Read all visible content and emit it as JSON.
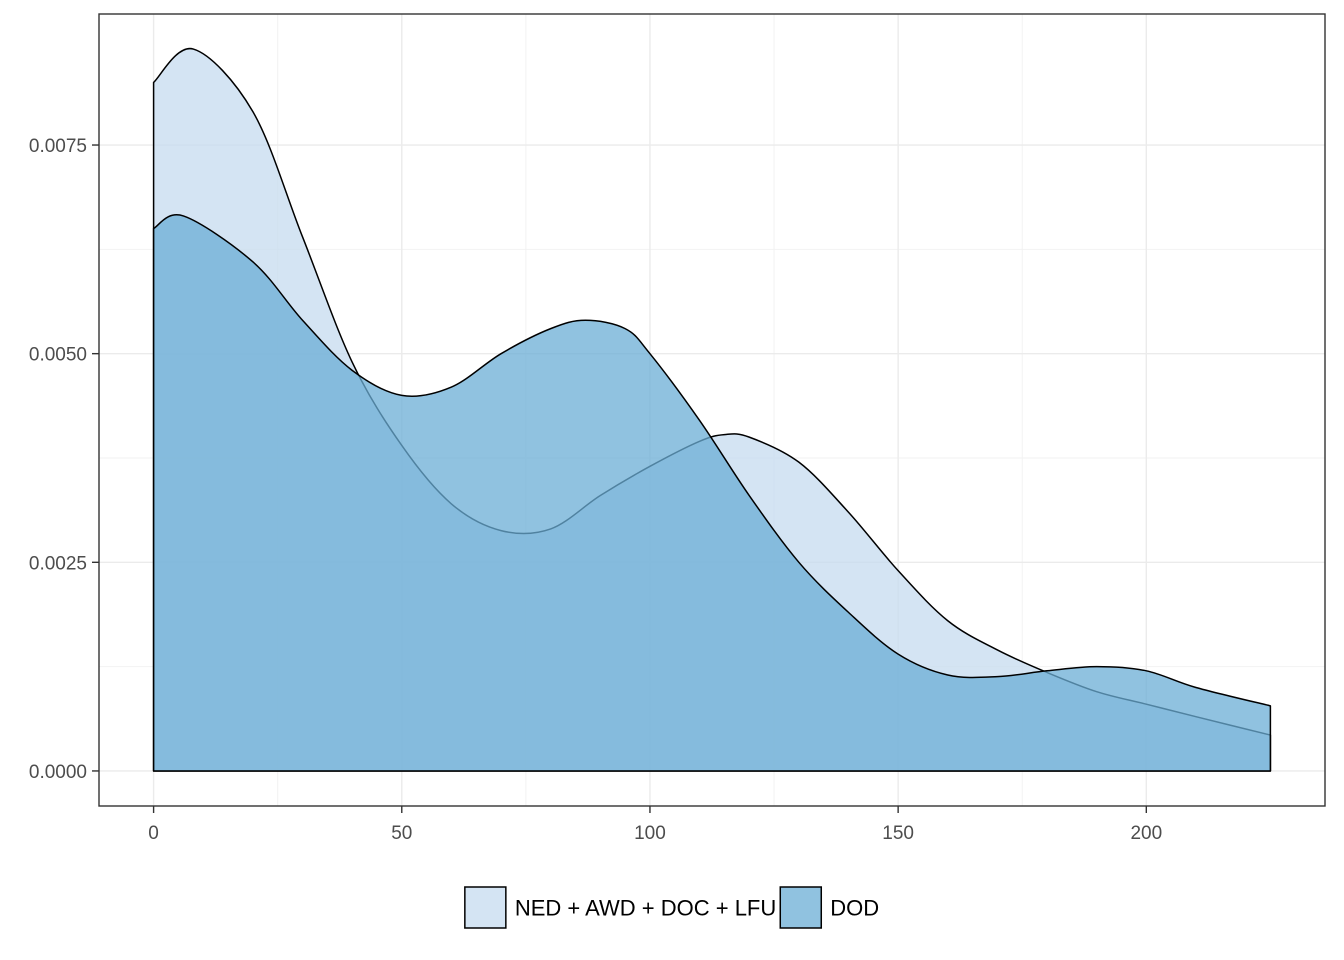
{
  "chart_data": {
    "type": "area",
    "title": "",
    "xlabel": "",
    "ylabel": "",
    "xlim": [
      -11,
      236
    ],
    "ylim": [
      -0.00042,
      0.00907
    ],
    "x_ticks": [
      0,
      50,
      100,
      150,
      200
    ],
    "x_tick_labels": [
      "0",
      "50",
      "100",
      "150",
      "200"
    ],
    "y_ticks": [
      0,
      0.0025,
      0.005,
      0.0075
    ],
    "y_tick_labels": [
      "0.0000",
      "0.0025",
      "0.0050",
      "0.0075"
    ],
    "grid": true,
    "legend_position": "bottom",
    "series": [
      {
        "name": "NED + AWD + DOC + LFU",
        "color": "#c6dbef",
        "x": [
          0,
          8,
          20,
          30,
          40,
          50,
          60,
          70,
          80,
          90,
          100,
          110,
          115,
          120,
          130,
          140,
          150,
          160,
          170,
          180,
          190,
          200,
          210,
          225
        ],
        "y": [
          0.00825,
          0.00865,
          0.0079,
          0.0064,
          0.0049,
          0.0039,
          0.0032,
          0.00288,
          0.0029,
          0.0033,
          0.00365,
          0.00395,
          0.00403,
          0.004,
          0.0037,
          0.0031,
          0.0024,
          0.0018,
          0.00145,
          0.00118,
          0.00095,
          0.0008,
          0.00065,
          0.00043
        ]
      },
      {
        "name": "DOD",
        "color": "#6baed6",
        "x": [
          0,
          6,
          20,
          30,
          40,
          50,
          60,
          70,
          80,
          87,
          95,
          100,
          110,
          120,
          130,
          140,
          150,
          160,
          170,
          180,
          190,
          200,
          210,
          225
        ],
        "y": [
          0.0065,
          0.00665,
          0.0061,
          0.0054,
          0.0048,
          0.0045,
          0.0046,
          0.005,
          0.0053,
          0.0054,
          0.0053,
          0.005,
          0.0042,
          0.0033,
          0.0025,
          0.0019,
          0.0014,
          0.00115,
          0.00113,
          0.0012,
          0.00125,
          0.0012,
          0.001,
          0.00078
        ]
      }
    ]
  }
}
